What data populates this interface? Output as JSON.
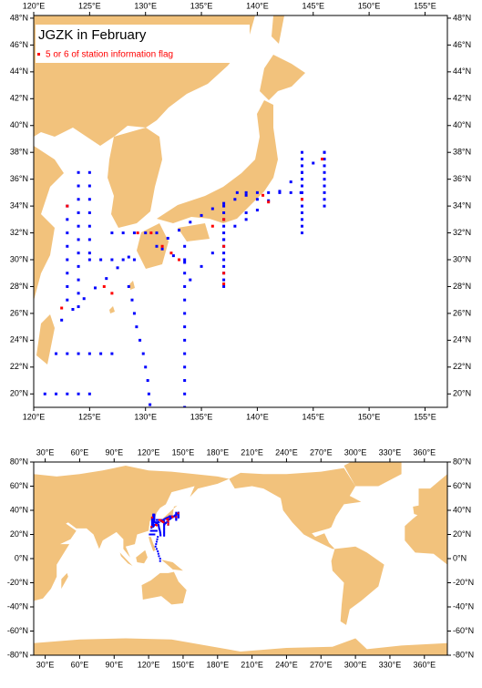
{
  "maps": [
    {
      "title": "JGZK in February",
      "legend": "5 or 6 of station information flag",
      "xlim": [
        120,
        157
      ],
      "ylim": [
        19,
        48.2
      ],
      "xticks": [
        {
          "value": 120,
          "label": "120°E"
        },
        {
          "value": 125,
          "label": "125°E"
        },
        {
          "value": 130,
          "label": "130°E"
        },
        {
          "value": 135,
          "label": "135°E"
        },
        {
          "value": 140,
          "label": "140°E"
        },
        {
          "value": 145,
          "label": "145°E"
        },
        {
          "value": 150,
          "label": "150°E"
        },
        {
          "value": 155,
          "label": "155°E"
        }
      ],
      "yticks": [
        {
          "value": 20,
          "label": "20°N"
        },
        {
          "value": 22,
          "label": "22°N"
        },
        {
          "value": 24,
          "label": "24°N"
        },
        {
          "value": 26,
          "label": "26°N"
        },
        {
          "value": 28,
          "label": "28°N"
        },
        {
          "value": 30,
          "label": "30°N"
        },
        {
          "value": 32,
          "label": "32°N"
        },
        {
          "value": 34,
          "label": "34°N"
        },
        {
          "value": 36,
          "label": "36°N"
        },
        {
          "value": 38,
          "label": "38°N"
        },
        {
          "value": 40,
          "label": "40°N"
        },
        {
          "value": 42,
          "label": "42°N"
        },
        {
          "value": 44,
          "label": "44°N"
        },
        {
          "value": 46,
          "label": "46°N"
        },
        {
          "value": 48,
          "label": "48°N"
        }
      ]
    },
    {
      "xlim": [
        20,
        380
      ],
      "ylim": [
        -80,
        80
      ],
      "xticks": [
        {
          "value": 30,
          "label": "30°E"
        },
        {
          "value": 60,
          "label": "60°E"
        },
        {
          "value": 90,
          "label": "90°E"
        },
        {
          "value": 120,
          "label": "120°E"
        },
        {
          "value": 150,
          "label": "150°E"
        },
        {
          "value": 180,
          "label": "180°E"
        },
        {
          "value": 210,
          "label": "210°E"
        },
        {
          "value": 240,
          "label": "240°E"
        },
        {
          "value": 270,
          "label": "270°E"
        },
        {
          "value": 300,
          "label": "300°E"
        },
        {
          "value": 330,
          "label": "330°E"
        },
        {
          "value": 360,
          "label": "360°E"
        }
      ],
      "yticks": [
        {
          "value": -80,
          "label": "-80°N"
        },
        {
          "value": -60,
          "label": "-60°N"
        },
        {
          "value": -40,
          "label": "-40°N"
        },
        {
          "value": -20,
          "label": "-20°N"
        },
        {
          "value": 0,
          "label": "0°N"
        },
        {
          "value": 20,
          "label": "20°N"
        },
        {
          "value": 40,
          "label": "40°N"
        },
        {
          "value": 60,
          "label": "60°N"
        },
        {
          "value": 80,
          "label": "80°N"
        }
      ]
    }
  ],
  "land_color": "#f2c27c",
  "station_color": "#0000ff",
  "flag_color": "#ff0000",
  "stations": {
    "tracks": [
      {
        "lon": [
          137,
          137,
          137,
          137,
          137,
          137,
          137,
          137,
          137,
          137,
          137,
          137,
          137
        ],
        "lat": [
          34,
          33.5,
          33,
          32.5,
          32,
          31.5,
          31,
          30.5,
          30,
          29.5,
          29,
          28.5,
          28
        ]
      },
      {
        "lon": [
          144,
          144,
          144,
          144,
          144,
          144,
          144,
          144,
          144,
          144,
          144,
          144,
          144
        ],
        "lat": [
          38,
          37.5,
          37,
          36.5,
          36,
          35.5,
          35,
          34.5,
          34,
          33.5,
          33,
          32.5,
          32
        ]
      },
      {
        "lon": [
          146,
          146,
          146,
          146,
          146,
          146,
          146,
          146,
          146
        ],
        "lat": [
          38,
          37.5,
          37,
          36.5,
          36,
          35.5,
          35,
          34.5,
          34
        ]
      },
      {
        "lon": [
          128.5,
          128.8,
          129,
          129.2,
          129.5,
          129.8,
          130,
          130.2,
          130.3,
          130.4
        ],
        "lat": [
          28,
          27,
          26,
          25,
          24,
          23,
          22,
          21,
          20,
          19.2
        ]
      },
      {
        "lon": [
          133.5,
          133.5,
          133.5,
          133.5,
          133.5,
          133.5,
          133.5,
          133.5,
          133.5,
          133.5,
          133.5,
          133.5,
          133.5
        ],
        "lat": [
          31,
          30,
          29,
          28,
          27,
          26,
          25,
          24,
          23,
          22,
          21,
          20,
          19
        ]
      },
      {
        "lon": [
          124,
          124,
          124,
          124,
          124,
          124,
          124,
          124,
          124,
          124,
          124
        ],
        "lat": [
          36.5,
          35.5,
          34.5,
          33.5,
          32.5,
          31.5,
          30.5,
          29.5,
          28.5,
          27.5,
          26.5
        ]
      },
      {
        "lon": [
          125,
          125,
          125,
          125,
          125,
          125,
          125
        ],
        "lat": [
          36.5,
          35.5,
          34.5,
          33.5,
          32.5,
          31.5,
          30.5
        ]
      },
      {
        "lon": [
          123,
          123,
          123,
          123,
          123,
          123,
          123,
          123
        ],
        "lat": [
          34,
          33,
          32,
          31,
          30,
          29,
          28,
          27
        ]
      },
      {
        "lon": [
          121,
          122,
          123,
          124,
          125
        ],
        "lat": [
          20,
          20,
          20,
          20,
          20
        ]
      },
      {
        "lon": [
          122,
          123,
          124,
          125,
          126,
          127
        ],
        "lat": [
          23,
          23,
          23,
          23,
          23,
          23
        ]
      },
      {
        "lon": [
          122.5,
          123.5,
          124.5,
          125.5,
          126.5,
          127.5,
          128.5
        ],
        "lat": [
          25.5,
          26.3,
          27.1,
          27.9,
          28.6,
          29.4,
          30.2
        ]
      },
      {
        "lon": [
          131,
          132,
          133,
          134,
          135,
          136,
          137,
          138,
          139
        ],
        "lat": [
          31,
          31.6,
          32.2,
          32.8,
          33.3,
          33.8,
          34.2,
          34.5,
          34.8
        ]
      },
      {
        "lon": [
          138.2,
          139,
          140,
          141,
          142,
          143,
          143.9
        ],
        "lat": [
          35,
          35,
          35,
          35,
          35,
          35,
          35
        ]
      },
      {
        "lon": [
          127,
          128,
          129,
          130,
          131
        ],
        "lat": [
          32,
          32,
          32,
          32,
          32
        ]
      },
      {
        "lon": [
          139,
          140,
          141,
          142,
          143,
          144,
          145,
          146
        ],
        "lat": [
          33,
          33.7,
          34.4,
          35.1,
          35.8,
          36.5,
          37.2,
          38
        ]
      },
      {
        "lon": [
          131.5,
          132.5,
          133.5
        ],
        "lat": [
          30.8,
          30.3,
          29.8
        ]
      },
      {
        "lon": [
          125,
          126,
          127,
          128,
          129
        ],
        "lat": [
          30,
          30,
          30,
          30,
          30
        ]
      },
      {
        "lon": [
          134,
          135,
          136,
          137,
          138,
          139,
          140
        ],
        "lat": [
          28.5,
          29.5,
          30.5,
          31.5,
          32.5,
          33.5,
          34.5
        ]
      },
      {
        "lon": [
          128,
          127.5,
          127,
          126.5,
          126,
          127,
          128,
          128.5,
          129,
          130,
          130
        ],
        "lat": [
          18,
          16,
          14,
          12,
          10,
          8,
          6,
          4,
          2,
          0,
          -2
        ]
      }
    ],
    "flagged": {
      "lon": [
        137,
        137,
        137,
        137,
        140.5,
        141,
        131.5,
        132.3,
        133,
        126.3,
        122.5,
        123,
        129.3,
        130.5,
        144,
        145.8,
        136,
        127
      ],
      "lat": [
        33,
        31,
        29,
        28.2,
        34.8,
        34.3,
        31,
        30.5,
        30,
        28,
        26.4,
        34,
        32,
        32,
        34.5,
        37.5,
        32.5,
        27.5
      ]
    }
  }
}
